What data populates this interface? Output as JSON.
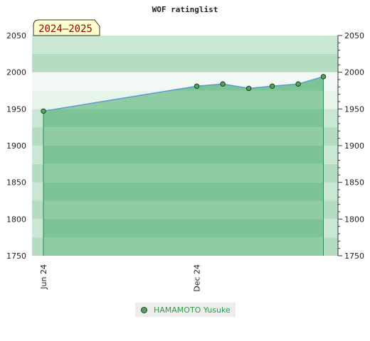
{
  "chart_data": {
    "type": "area",
    "title": "WOF ratinglist",
    "season_label": "2024–2025",
    "ylim": [
      1750,
      2050
    ],
    "y_ticks": [
      1750,
      1800,
      1850,
      1900,
      1950,
      2000,
      2050
    ],
    "x_start": "2024-06-01",
    "x_end": "2025-06-01",
    "x_tick_labels": [
      {
        "label": "Jun 24",
        "date": "2024-06-01"
      },
      {
        "label": "Dec 24",
        "date": "2024-12-01"
      }
    ],
    "legend_position": "bottom",
    "series": [
      {
        "name": "HAMAMOTO Yusuke",
        "color": "#5b9bd5",
        "points": [
          {
            "date": "2024-06-01",
            "value": 1947
          },
          {
            "date": "2024-12-01",
            "value": 1981
          },
          {
            "date": "2025-01-01",
            "value": 1984
          },
          {
            "date": "2025-02-01",
            "value": 1978
          },
          {
            "date": "2025-03-01",
            "value": 1981
          },
          {
            "date": "2025-04-01",
            "value": 1984
          },
          {
            "date": "2025-05-01",
            "value": 1994
          }
        ]
      }
    ],
    "colors": {
      "band_dark": "#b3dcc0",
      "band_light": "#c9e7d3",
      "band_top_light": "#e6f4ea",
      "fill_dark": "#7cc395",
      "fill_light": "#8fcca3",
      "marker_fill": "#5aa05a",
      "marker_stroke": "#1e3d1e",
      "legend_text": "#2e9e4a",
      "badge_bg": "#ffffcc",
      "badge_text": "#990000"
    }
  }
}
